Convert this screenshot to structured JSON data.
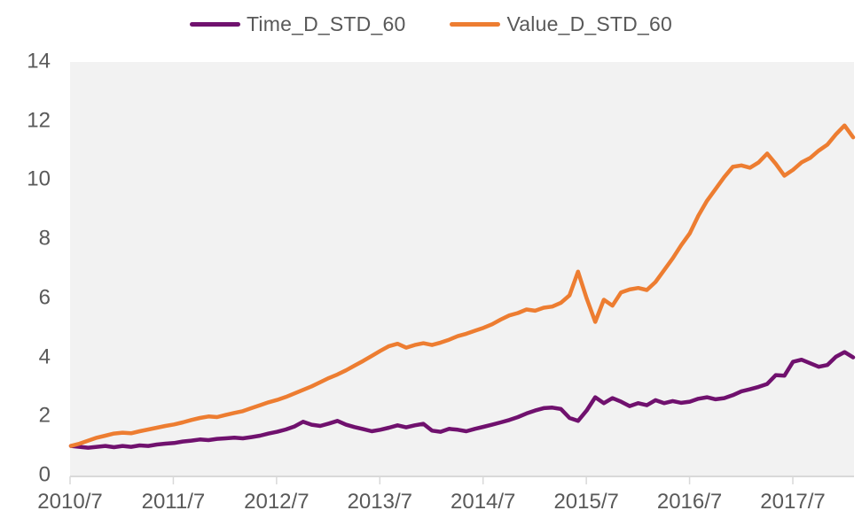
{
  "chart_data": {
    "type": "line",
    "title": "",
    "xlabel": "",
    "ylabel": "",
    "x_unit": "months starting 2010/7, one value per month",
    "x_tick_labels": [
      "2010/7",
      "2011/7",
      "2012/7",
      "2013/7",
      "2014/7",
      "2015/7",
      "2016/7",
      "2017/7"
    ],
    "y_ticks": [
      0,
      2,
      4,
      6,
      8,
      10,
      12,
      14
    ],
    "ylim": [
      0,
      14
    ],
    "grid": false,
    "legend_position": "top-center",
    "plot_bg": "#F2F2F2",
    "axis_color": "#D9D9D9",
    "label_color": "#595959",
    "series": [
      {
        "name": "Time_D_STD_60",
        "color": "#70116E",
        "values": [
          1.0,
          0.97,
          0.94,
          0.97,
          1.0,
          0.96,
          1.0,
          0.97,
          1.02,
          1.0,
          1.05,
          1.08,
          1.1,
          1.15,
          1.18,
          1.22,
          1.2,
          1.24,
          1.26,
          1.28,
          1.26,
          1.3,
          1.35,
          1.42,
          1.48,
          1.56,
          1.66,
          1.82,
          1.72,
          1.68,
          1.76,
          1.85,
          1.72,
          1.64,
          1.57,
          1.5,
          1.55,
          1.62,
          1.7,
          1.63,
          1.7,
          1.75,
          1.52,
          1.48,
          1.58,
          1.55,
          1.5,
          1.58,
          1.65,
          1.72,
          1.8,
          1.88,
          1.98,
          2.1,
          2.2,
          2.28,
          2.3,
          2.25,
          1.95,
          1.85,
          2.2,
          2.65,
          2.45,
          2.62,
          2.5,
          2.35,
          2.45,
          2.38,
          2.55,
          2.45,
          2.52,
          2.46,
          2.5,
          2.6,
          2.65,
          2.58,
          2.62,
          2.72,
          2.85,
          2.92,
          3.0,
          3.1,
          3.4,
          3.38,
          3.85,
          3.92,
          3.8,
          3.68,
          3.74,
          4.02,
          4.18,
          4.0
        ]
      },
      {
        "name": "Value_D_STD_60",
        "color": "#ED7D31",
        "values": [
          1.0,
          1.08,
          1.18,
          1.28,
          1.35,
          1.42,
          1.45,
          1.43,
          1.5,
          1.56,
          1.62,
          1.68,
          1.73,
          1.8,
          1.88,
          1.95,
          2.0,
          1.98,
          2.05,
          2.12,
          2.18,
          2.28,
          2.38,
          2.48,
          2.56,
          2.66,
          2.78,
          2.9,
          3.02,
          3.16,
          3.3,
          3.42,
          3.56,
          3.72,
          3.88,
          4.05,
          4.22,
          4.38,
          4.46,
          4.33,
          4.42,
          4.48,
          4.42,
          4.5,
          4.6,
          4.72,
          4.8,
          4.9,
          5.0,
          5.12,
          5.28,
          5.42,
          5.5,
          5.62,
          5.58,
          5.68,
          5.72,
          5.85,
          6.1,
          6.9,
          6.0,
          5.2,
          5.95,
          5.75,
          6.2,
          6.3,
          6.35,
          6.28,
          6.55,
          6.95,
          7.35,
          7.8,
          8.2,
          8.8,
          9.3,
          9.7,
          10.1,
          10.45,
          10.5,
          10.42,
          10.6,
          10.9,
          10.55,
          10.15,
          10.35,
          10.6,
          10.75,
          11.0,
          11.2,
          11.55,
          11.85,
          11.45
        ]
      }
    ]
  }
}
